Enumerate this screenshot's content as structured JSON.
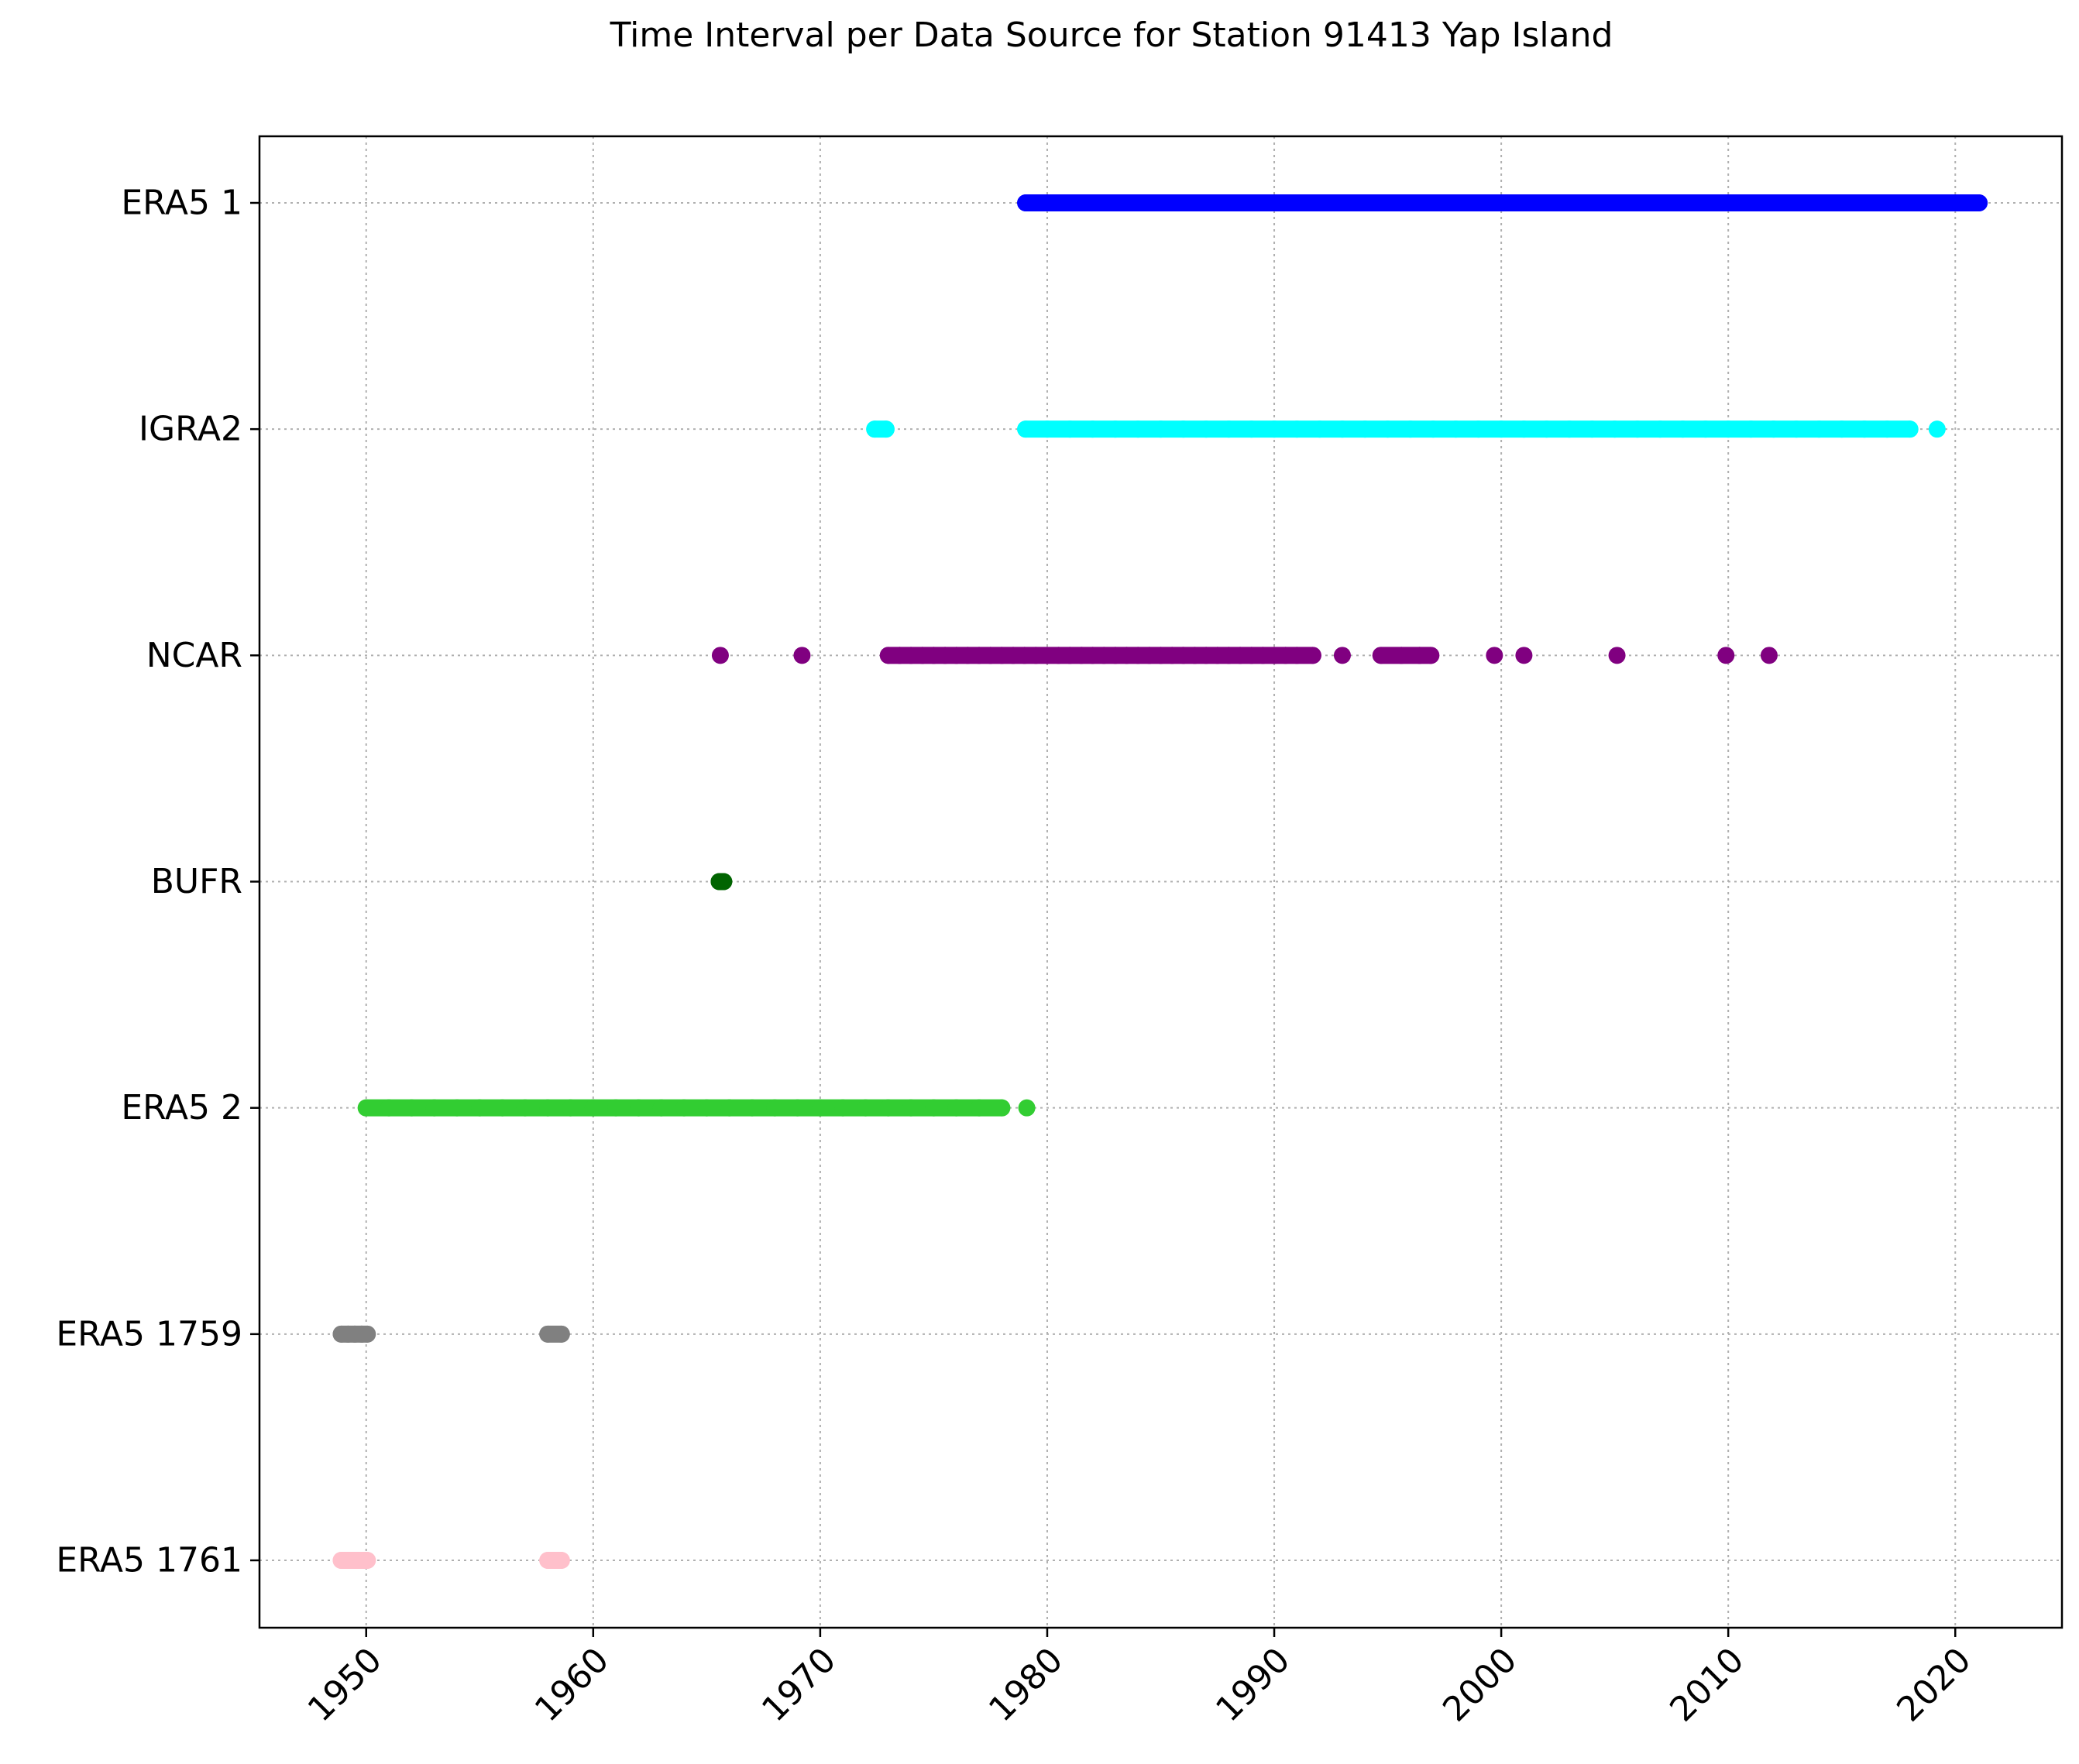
{
  "chart_data": {
    "type": "scatter",
    "title": "Time Interval per Data Source for Station 91413 Yap Island",
    "xlabel": "",
    "ylabel": "",
    "xlim": [
      1945.3,
      2024.7
    ],
    "x_ticks": [
      1950,
      1960,
      1970,
      1980,
      1990,
      2000,
      2010,
      2020
    ],
    "grid": true,
    "categories": [
      "ERA5 1761",
      "ERA5 1759",
      "ERA5 2",
      "BUFR",
      "NCAR",
      "IGRA2",
      "ERA5 1"
    ],
    "series": [
      {
        "name": "ERA5 1",
        "color": "#0000ff",
        "x": [
          1979.05,
          1980.0,
          1981.0,
          1982.0,
          1983.0,
          1984.0,
          1985.0,
          1986.0,
          1987.0,
          1988.0,
          1989.0,
          1990.0,
          1991.0,
          1992.0,
          1993.0,
          1994.0,
          1995.0,
          1996.0,
          1997.0,
          1998.0,
          1999.0,
          2000.0,
          2001.0,
          2002.0,
          2003.0,
          2004.0,
          2005.0,
          2006.0,
          2007.0,
          2008.0,
          2009.0,
          2010.0,
          2011.0,
          2012.0,
          2013.0,
          2014.0,
          2015.0,
          2016.0,
          2017.0,
          2018.0,
          2019.0,
          2020.0,
          2021.05
        ]
      },
      {
        "name": "IGRA2",
        "color": "#00ffff",
        "x": [
          1972.4,
          1972.9,
          1979.05,
          1980.0,
          1981.0,
          1982.0,
          1983.0,
          1984.0,
          1985.0,
          1986.0,
          1987.0,
          1988.0,
          1989.0,
          1990.0,
          1991.0,
          1992.0,
          1993.0,
          1994.0,
          1995.0,
          1996.0,
          1997.0,
          1998.0,
          1999.0,
          2000.0,
          2001.0,
          2002.0,
          2003.0,
          2004.0,
          2005.0,
          2006.0,
          2007.0,
          2008.0,
          2009.0,
          2010.0,
          2011.0,
          2012.0,
          2013.0,
          2014.0,
          2015.0,
          2016.0,
          2017.0,
          2018.0,
          2019.2
        ]
      },
      {
        "name": "NCAR",
        "color": "#800080",
        "x": [
          1965.6,
          1969.2,
          1973.0,
          1973.5,
          1974.0,
          1974.5,
          1975.0,
          1975.5,
          1976.0,
          1976.5,
          1977.0,
          1977.5,
          1978.0,
          1978.5,
          1979.0,
          1979.5,
          1980.0,
          1980.5,
          1981.0,
          1981.5,
          1982.0,
          1982.5,
          1983.0,
          1983.5,
          1984.0,
          1984.5,
          1985.0,
          1985.5,
          1986.0,
          1986.5,
          1987.0,
          1987.5,
          1988.0,
          1988.5,
          1989.0,
          1989.5,
          1990.0,
          1990.5,
          1991.0,
          1991.7,
          1993.0,
          1994.7,
          1995.6,
          1996.4,
          1996.9,
          1999.7,
          2001.0,
          2005.1,
          2009.9,
          2011.8
        ]
      },
      {
        "name": "BUFR",
        "color": "#006400",
        "x": [
          1965.55,
          1965.75
        ]
      },
      {
        "name": "ERA5 2",
        "color": "#32cd32",
        "x": [
          1950.0,
          1951.0,
          1952.0,
          1953.0,
          1954.0,
          1955.0,
          1956.0,
          1957.0,
          1958.0,
          1959.0,
          1960.0,
          1961.0,
          1962.0,
          1963.0,
          1964.0,
          1965.0,
          1966.0,
          1967.0,
          1968.0,
          1969.0,
          1970.0,
          1971.0,
          1972.0,
          1973.0,
          1974.0,
          1975.0,
          1976.0,
          1977.0,
          1978.0,
          1979.1
        ]
      },
      {
        "name": "ERA5 1759",
        "color": "#808080",
        "x": [
          1948.9,
          1949.2,
          1949.5,
          1949.8,
          1950.05,
          1958.0,
          1958.6
        ]
      },
      {
        "name": "ERA5 1761",
        "color": "#ffc0cb",
        "x": [
          1948.9,
          1949.2,
          1949.5,
          1949.8,
          1950.05,
          1958.0,
          1958.6
        ]
      }
    ]
  }
}
